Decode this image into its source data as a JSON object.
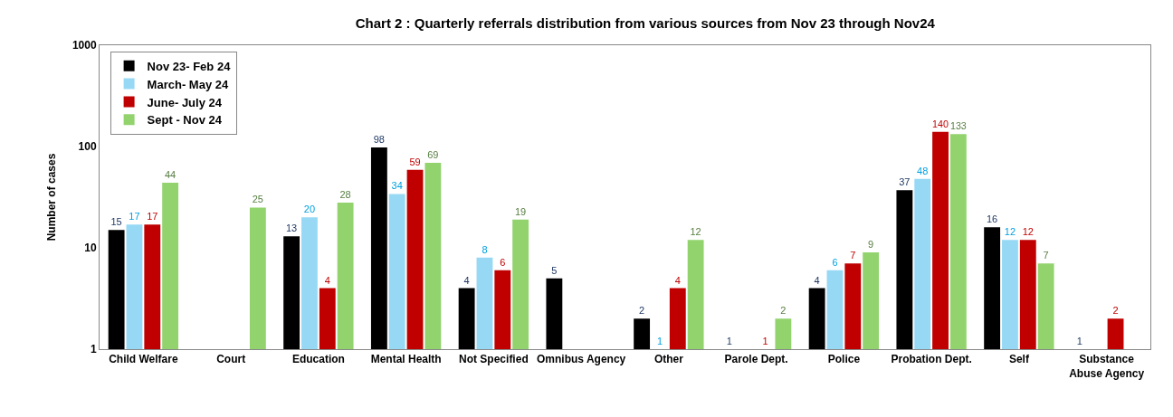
{
  "chart_data": {
    "type": "bar",
    "title": "Chart 2 : Quarterly referrals distribution from various sources from Nov 23 through Nov24",
    "ylabel": "Number of cases",
    "categories": [
      "Child Welfare",
      "Court",
      "Education",
      "Mental Health",
      "Not Specified",
      "Omnibus Agency",
      "Other",
      "Parole Dept.",
      "Police",
      "Probation Dept.",
      "Self",
      "Substance Abuse Agency"
    ],
    "series": [
      {
        "name": "Nov 23- Feb 24",
        "color": "#000000",
        "values": [
          15,
          null,
          13,
          98,
          4,
          5,
          2,
          1,
          4,
          37,
          16,
          1
        ]
      },
      {
        "name": "March- May 24",
        "color": "#97d9f5",
        "values": [
          17,
          null,
          20,
          34,
          8,
          null,
          1,
          null,
          6,
          48,
          12,
          null
        ]
      },
      {
        "name": "June- July 24",
        "color": "#c00000",
        "values": [
          17,
          null,
          4,
          59,
          6,
          null,
          4,
          1,
          7,
          140,
          12,
          2
        ]
      },
      {
        "name": "Sept - Nov 24",
        "color": "#92d36e",
        "values": [
          44,
          25,
          28,
          69,
          19,
          null,
          12,
          2,
          9,
          133,
          7,
          null
        ]
      }
    ],
    "log": "y",
    "ylim": [
      1,
      1000
    ],
    "yticks": [
      1,
      10,
      100,
      1000
    ],
    "legend": "top left",
    "data_labels": true
  }
}
